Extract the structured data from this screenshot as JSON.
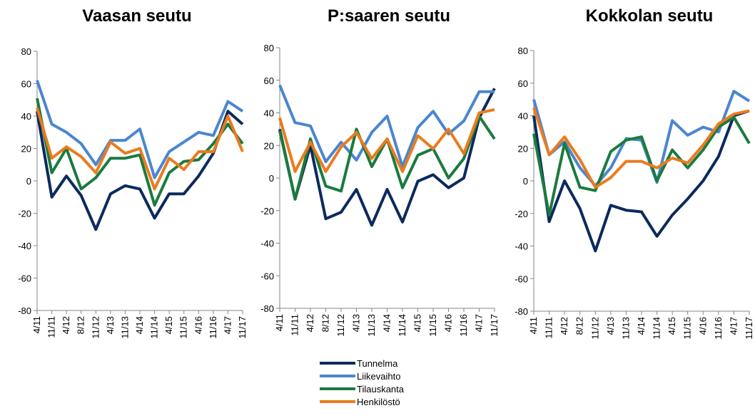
{
  "chart_data": [
    {
      "type": "line",
      "title": "Vaasan seutu",
      "categories": [
        "4/11",
        "11/11",
        "4/12",
        "8/12",
        "11/12",
        "4/13",
        "11/13",
        "4/14",
        "11/14",
        "4/15",
        "11/15",
        "4/16",
        "11/16",
        "4/17",
        "11/17"
      ],
      "ylim": [
        -80,
        80
      ],
      "yticks": [
        -80,
        -60,
        -40,
        -20,
        0,
        20,
        40,
        60,
        80
      ],
      "series": [
        {
          "name": "Tunnelma",
          "color": "#0b2a5e",
          "values": [
            43,
            -10,
            3,
            -9,
            -30,
            -8,
            -3,
            -5,
            -23,
            -8,
            -8,
            3,
            17,
            43,
            35
          ]
        },
        {
          "name": "Liikevaihto",
          "color": "#4a86d0",
          "values": [
            62,
            35,
            30,
            23,
            10,
            25,
            25,
            32,
            2,
            18,
            24,
            30,
            28,
            49,
            43
          ]
        },
        {
          "name": "Tilauskanta",
          "color": "#1b7a3e",
          "values": [
            51,
            5,
            20,
            -5,
            2,
            14,
            14,
            16,
            -15,
            5,
            12,
            13,
            23,
            35,
            23
          ]
        },
        {
          "name": "Henkilöstö",
          "color": "#ea7b1e",
          "values": [
            45,
            14,
            21,
            15,
            5,
            24,
            17,
            20,
            -5,
            14,
            7,
            18,
            18,
            40,
            18
          ]
        }
      ]
    },
    {
      "type": "line",
      "title": "P:saaren seutu",
      "categories": [
        "4/11",
        "11/11",
        "4/12",
        "8/12",
        "11/12",
        "4/13",
        "11/13",
        "4/14",
        "11/14",
        "4/15",
        "11/15",
        "4/16",
        "11/16",
        "4/17",
        "11/17"
      ],
      "ylim": [
        -80,
        80
      ],
      "yticks": [
        -80,
        -60,
        -40,
        -20,
        0,
        20,
        40,
        60,
        80
      ],
      "series": [
        {
          "name": "Tunnelma",
          "color": "#0b2a5e",
          "values": [
            30,
            -13,
            20,
            -25,
            -21,
            -7,
            -29,
            -7,
            -27,
            -2,
            2,
            -6,
            0,
            37,
            55
          ]
        },
        {
          "name": "Liikevaihto",
          "color": "#4a86d0",
          "values": [
            57,
            34,
            32,
            10,
            22,
            11,
            28,
            38,
            7,
            31,
            41,
            27,
            35,
            53,
            53
          ]
        },
        {
          "name": "Tilauskanta",
          "color": "#1b7a3e",
          "values": [
            29,
            -13,
            24,
            -5,
            -8,
            30,
            7,
            24,
            -6,
            14,
            18,
            0,
            12,
            38,
            24
          ]
        },
        {
          "name": "Henkilöstö",
          "color": "#ea7b1e",
          "values": [
            37,
            4,
            22,
            4,
            19,
            28,
            12,
            24,
            4,
            26,
            18,
            30,
            15,
            40,
            42
          ]
        }
      ]
    },
    {
      "type": "line",
      "title": "Kokkolan seutu",
      "categories": [
        "4/11",
        "11/11",
        "4/12",
        "8/12",
        "11/12",
        "4/13",
        "11/13",
        "4/14",
        "11/14",
        "4/15",
        "11/15",
        "4/16",
        "11/16",
        "4/17",
        "11/17"
      ],
      "ylim": [
        -80,
        80
      ],
      "yticks": [
        -80,
        -60,
        -40,
        -20,
        0,
        20,
        40,
        60,
        80
      ],
      "series": [
        {
          "name": "Tunnelma",
          "color": "#0b2a5e",
          "values": [
            40,
            -25,
            0,
            -17,
            -43,
            -15,
            -18,
            -19,
            -34,
            -21,
            -11,
            0,
            15,
            40,
            43
          ]
        },
        {
          "name": "Liikevaihto",
          "color": "#4a86d0",
          "values": [
            50,
            16,
            24,
            8,
            -3,
            8,
            26,
            25,
            -1,
            37,
            28,
            33,
            30,
            55,
            49
          ]
        },
        {
          "name": "Tilauskanta",
          "color": "#1b7a3e",
          "values": [
            29,
            -21,
            23,
            -4,
            -6,
            18,
            25,
            27,
            0,
            19,
            8,
            19,
            33,
            39,
            23
          ]
        },
        {
          "name": "Henkilöstö",
          "color": "#ea7b1e",
          "values": [
            45,
            16,
            27,
            13,
            -4,
            2,
            12,
            12,
            8,
            14,
            11,
            22,
            35,
            41,
            43
          ]
        }
      ]
    }
  ]
}
